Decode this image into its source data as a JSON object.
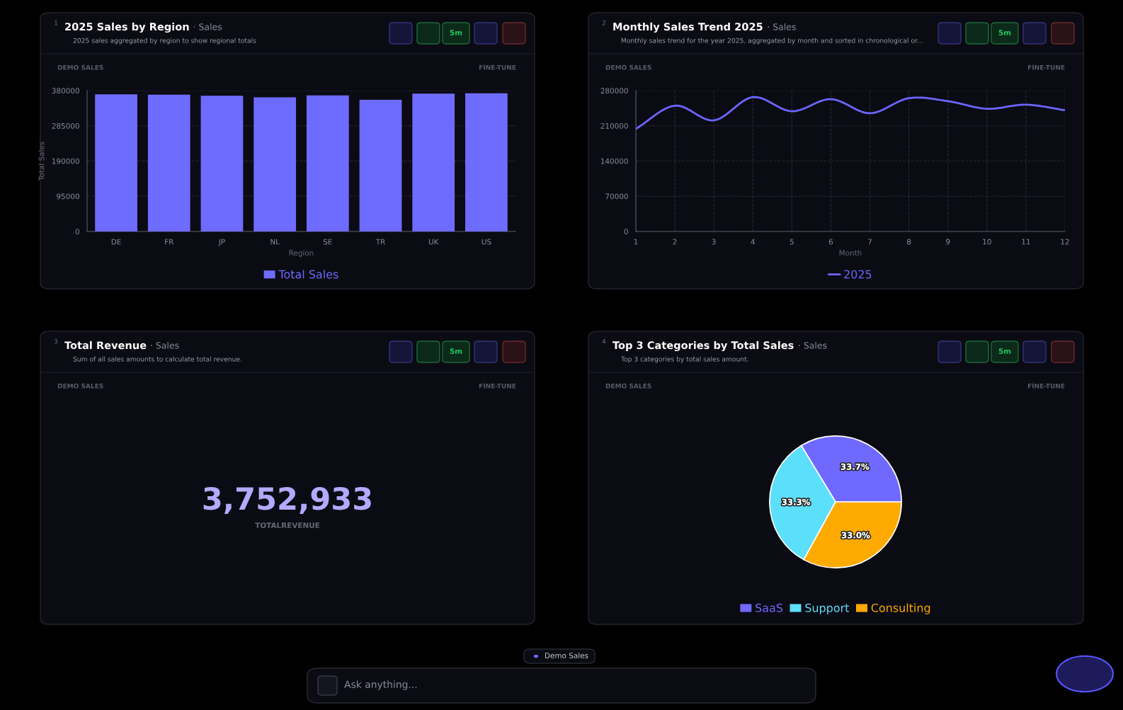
{
  "chart_data": [
    {
      "type": "bar",
      "title": "2025 Sales by Region",
      "subtitle": "· Sales",
      "xlabel": "Region",
      "ylabel": "Total Sales",
      "categories": [
        "DE",
        "FR",
        "JP",
        "NL",
        "SE",
        "TR",
        "UK",
        "US"
      ],
      "series": [
        {
          "name": "Total Sales",
          "color": "#6e6bff",
          "values": [
            370000,
            369000,
            366000,
            362000,
            367000,
            355000,
            372000,
            373000
          ]
        }
      ],
      "ylim": [
        0,
        380000
      ],
      "yticks": [
        0,
        95000,
        190000,
        285000,
        380000
      ],
      "grid": "y",
      "legend": "bottom",
      "annotations": [
        "1",
        "2025 sales aggregated by region to show regional totals",
        "DEMO SALES",
        "FİNE-TUNE",
        "5m"
      ]
    },
    {
      "type": "line",
      "title": "Monthly Sales Trend 2025",
      "subtitle": "· Sales",
      "xlabel": "Month",
      "x": [
        1,
        2,
        3,
        4,
        5,
        6,
        7,
        8,
        9,
        10,
        11,
        12
      ],
      "series": [
        {
          "name": "2025",
          "color": "#6b66ff",
          "values": [
            204000,
            250000,
            221000,
            267000,
            239000,
            263000,
            235000,
            265000,
            259000,
            244000,
            252000,
            241000
          ]
        }
      ],
      "xlim": [
        1,
        12
      ],
      "xticks": [
        1,
        2,
        3,
        4,
        5,
        6,
        7,
        8,
        9,
        10,
        11,
        12
      ],
      "ylim": [
        0,
        280000
      ],
      "yticks": [
        0,
        70000,
        140000,
        210000,
        280000
      ],
      "grid": true,
      "legend": "bottom",
      "annotations": [
        "2",
        "Monthly sales trend for the year 2025, aggregated by month and sorted in chronological or...",
        "DEMO SALES",
        "FİNE-TUNE",
        "5m"
      ]
    },
    {
      "type": "other",
      "title": "Total Revenue",
      "subtitle": "· Sales",
      "annotations": [
        "3",
        "Sum of all sales amounts to calculate total revenue.",
        "DEMO SALES",
        "FİNE-TUNE",
        "5m",
        "3,752,933",
        "TOTALREVENUE"
      ]
    },
    {
      "type": "pie",
      "title": "Top 3 Categories by Total Sales",
      "subtitle": "· Sales",
      "categories": [
        "SaaS",
        "Support",
        "Consulting"
      ],
      "values": [
        33.7,
        33.3,
        33.0
      ],
      "value_labels": [
        "33.7%",
        "33.3%",
        "33.0%"
      ],
      "colors": [
        "#7069ff",
        "#5cdffa",
        "#ffaa00"
      ],
      "legend": "bottom",
      "annotations": [
        "4",
        "Top 3 categories by total sales amount.",
        "DEMO SALES",
        "FİNE-TUNE",
        "5m",
        "Demo Sales",
        "Ask anything..."
      ]
    }
  ]
}
